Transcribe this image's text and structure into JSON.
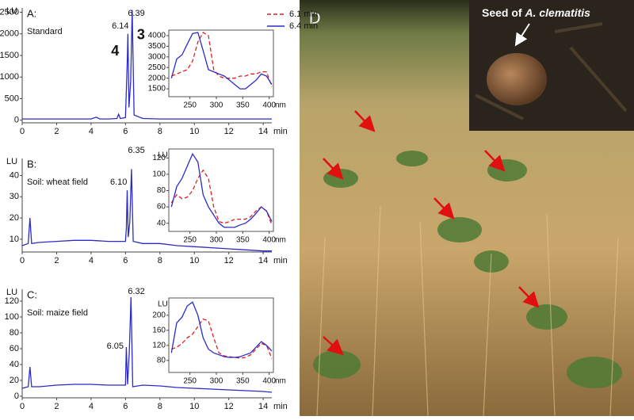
{
  "chart_data": [
    {
      "type": "line",
      "panel_label": "A:",
      "title": "Standard",
      "ylabel": "LU",
      "xlabel": "min",
      "xlim": [
        0,
        14.5
      ],
      "ylim": [
        -60,
        2600
      ],
      "xticks": [
        0,
        2,
        4,
        6,
        8,
        10,
        12,
        14
      ],
      "yticks": [
        0,
        500,
        1000,
        1500,
        2000,
        2500
      ],
      "x": [
        0,
        1,
        2,
        3,
        4,
        4.3,
        4.5,
        5,
        5.5,
        5.6,
        5.7,
        6.0,
        6.1,
        6.14,
        6.2,
        6.3,
        6.39,
        6.5,
        7,
        8,
        9,
        10,
        11,
        12,
        13,
        14,
        14.5
      ],
      "series": [
        {
          "color": "#2b2bc8",
          "values": [
            30,
            30,
            30,
            30,
            30,
            70,
            30,
            30,
            40,
            140,
            40,
            60,
            1300,
            2000,
            300,
            900,
            2550,
            120,
            40,
            30,
            30,
            30,
            30,
            30,
            30,
            30,
            30
          ]
        }
      ],
      "annotations": [
        {
          "text": "6.14",
          "x": 5.7,
          "y": 2180
        },
        {
          "text": "6.39",
          "x": 6.63,
          "y": 2470
        },
        {
          "text": "4",
          "x": 5.4,
          "y": 1590,
          "emphasis": true
        },
        {
          "text": "3",
          "x": 6.9,
          "y": 1958,
          "emphasis": true
        }
      ]
    },
    {
      "type": "line",
      "panel_label": "B:",
      "title": "Soil: wheat field",
      "ylabel": "LU",
      "xlabel": "min",
      "xlim": [
        0,
        14.5
      ],
      "ylim": [
        4,
        48
      ],
      "xticks": [
        0,
        2,
        4,
        6,
        8,
        10,
        12,
        14
      ],
      "yticks": [
        10,
        20,
        30,
        40
      ],
      "x": [
        0,
        0.35,
        0.45,
        0.55,
        1,
        2,
        3,
        4,
        5,
        6,
        6.05,
        6.1,
        6.16,
        6.25,
        6.35,
        6.45,
        7,
        8,
        9,
        10,
        11,
        12,
        13,
        14,
        14.5
      ],
      "series": [
        {
          "color": "#2b2bc8",
          "values": [
            7,
            8,
            20,
            8,
            8.5,
            9,
            9.5,
            9.5,
            9,
            9,
            15,
            33,
            11,
            18,
            43,
            9,
            8,
            8,
            7,
            6.5,
            6,
            5.5,
            5,
            4.5,
            4.5
          ]
        }
      ],
      "annotations": [
        {
          "text": "6.10",
          "x": 5.6,
          "y": 36.8
        },
        {
          "text": "6.35",
          "x": 6.63,
          "y": 51.7
        }
      ]
    },
    {
      "type": "line",
      "panel_label": "C:",
      "title": "Soil: maize field",
      "ylabel": "LU",
      "xlabel": "min",
      "xlim": [
        0,
        14.5
      ],
      "ylim": [
        -2,
        135
      ],
      "xticks": [
        0,
        2,
        4,
        6,
        8,
        10,
        12,
        14
      ],
      "yticks": [
        0,
        20,
        40,
        60,
        80,
        100,
        120
      ],
      "x": [
        0,
        0.35,
        0.45,
        0.55,
        1,
        2,
        3,
        4,
        5,
        6,
        6.05,
        6.12,
        6.22,
        6.32,
        6.42,
        7,
        8,
        9,
        10,
        11,
        12,
        13,
        14,
        14.5
      ],
      "series": [
        {
          "color": "#2b2bc8",
          "values": [
            10,
            12,
            37,
            12,
            12,
            14,
            15,
            15,
            14,
            14,
            62,
            15,
            55,
            125,
            12,
            14,
            13,
            11,
            10,
            9,
            8,
            7,
            6,
            5
          ]
        }
      ],
      "annotations": [
        {
          "text": "6.05",
          "x": 5.4,
          "y": 63
        },
        {
          "text": "6.32",
          "x": 6.63,
          "y": 132
        }
      ]
    },
    {
      "type": "line",
      "xlabel": "nm",
      "xlim": [
        210,
        408
      ],
      "ylim": [
        1130,
        4260
      ],
      "xticks": [
        250,
        300,
        350,
        400
      ],
      "yticks": [
        1500,
        2000,
        2500,
        3000,
        3500,
        4000
      ],
      "legend": "upper right",
      "x": [
        215,
        225,
        235,
        245,
        255,
        265,
        275,
        285,
        295,
        305,
        315,
        325,
        335,
        345,
        355,
        365,
        375,
        385,
        395,
        405
      ],
      "series": [
        {
          "name": "6.1 min",
          "color": "#e02020",
          "dash": true,
          "values": [
            2100,
            2200,
            2300,
            2400,
            2800,
            3700,
            4150,
            4000,
            2400,
            2100,
            2000,
            2000,
            2000,
            2100,
            2100,
            2200,
            2200,
            2300,
            2300,
            1600
          ]
        },
        {
          "name": "6.4 min",
          "color": "#2b2bc8",
          "values": [
            2000,
            2900,
            3100,
            3600,
            4100,
            4150,
            3300,
            2400,
            2300,
            2200,
            2100,
            1900,
            1700,
            1500,
            1500,
            1700,
            1900,
            2200,
            2100,
            1700
          ]
        }
      ]
    },
    {
      "type": "line",
      "ylabel": "LU",
      "xlabel": "nm",
      "xlim": [
        210,
        408
      ],
      "ylim": [
        30,
        131
      ],
      "xticks": [
        250,
        300,
        350,
        400
      ],
      "yticks": [
        40,
        60,
        80,
        100,
        120
      ],
      "x": [
        215,
        225,
        235,
        245,
        255,
        265,
        275,
        285,
        295,
        305,
        315,
        325,
        335,
        345,
        355,
        365,
        375,
        385,
        395,
        405
      ],
      "series": [
        {
          "color": "#e02020",
          "dash": true,
          "values": [
            65,
            75,
            70,
            72,
            80,
            95,
            105,
            95,
            60,
            42,
            40,
            42,
            45,
            45,
            45,
            48,
            55,
            60,
            55,
            38
          ]
        },
        {
          "color": "#2b2bc8",
          "values": [
            60,
            85,
            95,
            110,
            125,
            115,
            75,
            60,
            50,
            40,
            35,
            35,
            35,
            38,
            40,
            45,
            52,
            60,
            55,
            42
          ]
        }
      ]
    },
    {
      "type": "line",
      "ylabel": "LU",
      "xlabel": "nm",
      "xlim": [
        210,
        408
      ],
      "ylim": [
        48,
        246
      ],
      "xticks": [
        250,
        300,
        350,
        400
      ],
      "yticks": [
        80,
        120,
        160,
        200
      ],
      "x": [
        215,
        225,
        235,
        245,
        255,
        265,
        275,
        285,
        295,
        305,
        315,
        325,
        335,
        345,
        355,
        365,
        375,
        385,
        395,
        405
      ],
      "series": [
        {
          "color": "#e02020",
          "dash": true,
          "values": [
            110,
            115,
            125,
            140,
            150,
            170,
            190,
            185,
            140,
            100,
            92,
            90,
            88,
            86,
            88,
            95,
            110,
            125,
            120,
            85
          ]
        },
        {
          "color": "#2b2bc8",
          "values": [
            100,
            180,
            195,
            225,
            235,
            200,
            140,
            110,
            100,
            95,
            90,
            88,
            88,
            90,
            95,
            100,
            115,
            130,
            120,
            105
          ]
        }
      ]
    }
  ],
  "photo": {
    "label": "D",
    "caption_prefix": "Seed of",
    "caption_species": "A. clematitis"
  }
}
